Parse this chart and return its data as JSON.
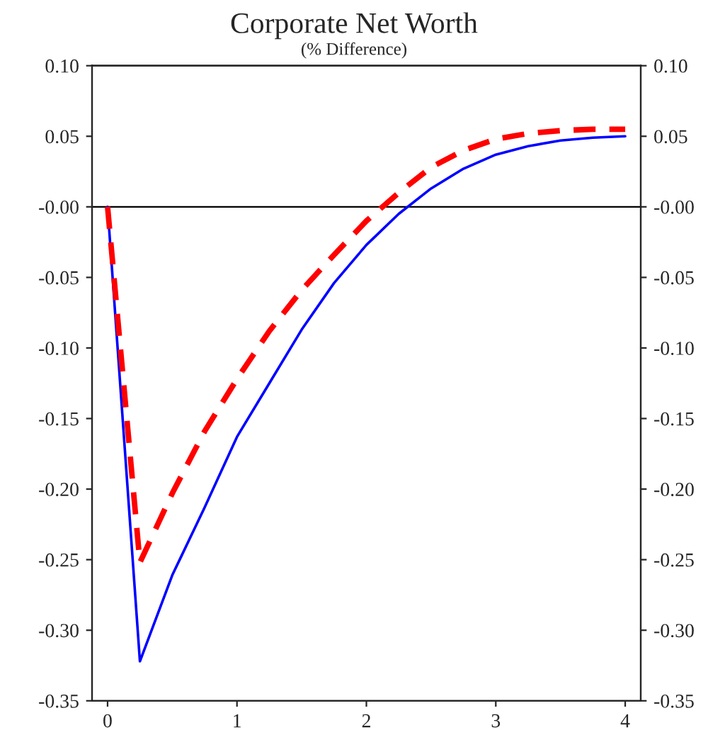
{
  "chart_data": {
    "type": "line",
    "title": "Corporate Net Worth",
    "subtitle": "(% Difference)",
    "x": [
      0,
      0.25,
      0.5,
      0.75,
      1,
      1.25,
      1.5,
      1.75,
      2,
      2.25,
      2.5,
      2.75,
      3,
      3.25,
      3.5,
      3.75,
      4
    ],
    "series": [
      {
        "color": "#0000ff",
        "line_style": "solid",
        "values": [
          0,
          -0.322,
          -0.261,
          -0.213,
          -0.163,
          -0.125,
          -0.087,
          -0.054,
          -0.027,
          -0.005,
          0.013,
          0.027,
          0.037,
          0.043,
          0.047,
          0.049,
          0.05
        ]
      },
      {
        "color": "#ff0000",
        "line_style": "dashed",
        "values": [
          0,
          -0.252,
          -0.203,
          -0.159,
          -0.122,
          -0.088,
          -0.059,
          -0.034,
          -0.01,
          0.01,
          0.028,
          0.04,
          0.048,
          0.052,
          0.054,
          0.055,
          0.055
        ]
      }
    ],
    "xlim": [
      -0.12,
      4.12
    ],
    "xticks": [
      0,
      1,
      2,
      3,
      4
    ],
    "ylim": [
      -0.35,
      0.1
    ],
    "yticks": [
      {
        "value": 0.1,
        "label": "0.10"
      },
      {
        "value": 0.05,
        "label": "0.05"
      },
      {
        "value": 0,
        "label": "-0.00"
      },
      {
        "value": -0.05,
        "label": "-0.05"
      },
      {
        "value": -0.1,
        "label": "-0.10"
      },
      {
        "value": -0.15,
        "label": "-0.15"
      },
      {
        "value": -0.2,
        "label": "-0.20"
      },
      {
        "value": -0.25,
        "label": "-0.25"
      },
      {
        "value": -0.3,
        "label": "-0.30"
      },
      {
        "value": -0.35,
        "label": "-0.35"
      }
    ],
    "y2lim": [
      -0.35,
      0.1
    ],
    "y2ticks": [
      {
        "value": 0.1,
        "label": "0.10"
      },
      {
        "value": 0.05,
        "label": "0.05"
      },
      {
        "value": 0,
        "label": "-0.00"
      },
      {
        "value": -0.05,
        "label": "-0.05"
      },
      {
        "value": -0.1,
        "label": "-0.10"
      },
      {
        "value": -0.15,
        "label": "-0.15"
      },
      {
        "value": -0.2,
        "label": "-0.20"
      },
      {
        "value": -0.25,
        "label": "-0.25"
      },
      {
        "value": -0.3,
        "label": "-0.30"
      },
      {
        "value": -0.35,
        "label": "-0.35"
      }
    ],
    "ref_lines": [
      {
        "axis": "y",
        "value": 0,
        "color": "#000000",
        "line_style": "solid"
      }
    ],
    "grid": false,
    "legend": false
  }
}
